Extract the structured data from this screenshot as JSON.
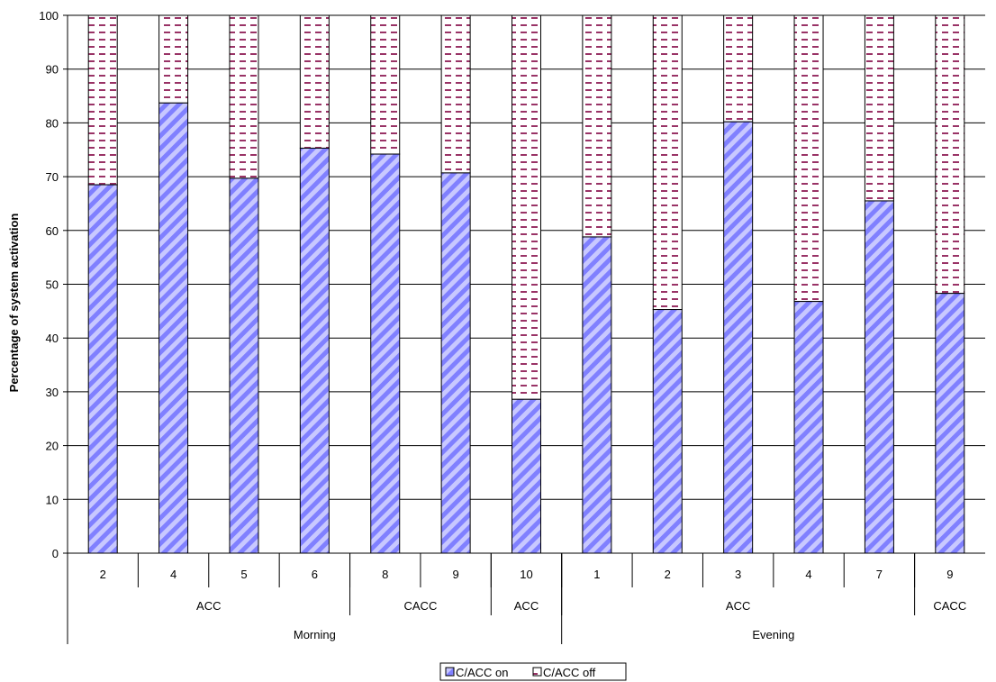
{
  "chart_data": {
    "type": "bar",
    "stacked": true,
    "ylabel": "Percentage of system activation",
    "ylim": [
      0,
      100
    ],
    "yticks": [
      0,
      10,
      20,
      30,
      40,
      50,
      60,
      70,
      80,
      90,
      100
    ],
    "grid": true,
    "legend_position": "bottom",
    "categories": [
      "2",
      "4",
      "5",
      "6",
      "8",
      "9",
      "10",
      "1",
      "2",
      "3",
      "4",
      "7",
      "9"
    ],
    "groups_level1": [
      {
        "label": "ACC",
        "count": 4
      },
      {
        "label": "CACC",
        "count": 2
      },
      {
        "label": "ACC",
        "count": 1
      },
      {
        "label": "ACC",
        "count": 5
      },
      {
        "label": "CACC",
        "count": 1
      }
    ],
    "groups_level2": [
      {
        "label": "Morning",
        "count": 7
      },
      {
        "label": "Evening",
        "count": 6
      }
    ],
    "series": [
      {
        "name": "C/ACC on",
        "values": [
          68.5,
          83.7,
          69.7,
          75.3,
          74.2,
          70.7,
          28.6,
          58.8,
          45.3,
          80.2,
          46.8,
          65.5,
          48.3
        ],
        "color": "#8080ff"
      },
      {
        "name": "C/ACC off",
        "values": [
          31.5,
          16.3,
          30.3,
          24.7,
          25.8,
          29.3,
          71.4,
          41.2,
          54.7,
          19.8,
          53.2,
          34.5,
          51.7
        ],
        "color": "#993366"
      }
    ]
  }
}
